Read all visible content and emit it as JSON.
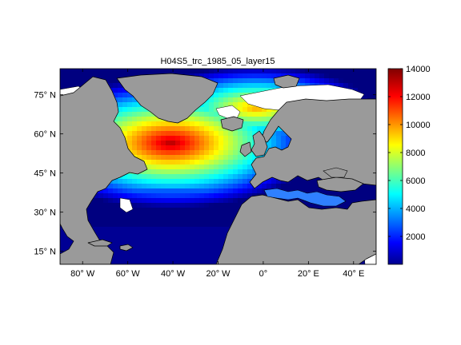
{
  "title": "H04S5_trc_1985_05_layer15",
  "map": {
    "lon_range": [
      -90,
      50
    ],
    "lat_range": [
      10,
      85
    ],
    "x_ticks": [
      {
        "value": -80,
        "label": "80° W"
      },
      {
        "value": -60,
        "label": "60° W"
      },
      {
        "value": -40,
        "label": "40° W"
      },
      {
        "value": -20,
        "label": "20° W"
      },
      {
        "value": 0,
        "label": "0°"
      },
      {
        "value": 20,
        "label": "20° E"
      },
      {
        "value": 40,
        "label": "40° E"
      }
    ],
    "y_ticks": [
      {
        "value": 15,
        "label": "15° N"
      },
      {
        "value": 30,
        "label": "30° N"
      },
      {
        "value": 45,
        "label": "45° N"
      },
      {
        "value": 60,
        "label": "60° N"
      },
      {
        "value": 75,
        "label": "75° N"
      }
    ],
    "land_color": "#9a9a9a",
    "ocean_no_data_color": "#ffffff"
  },
  "colorbar": {
    "min": 0,
    "max": 14000,
    "ticks": [
      {
        "value": 2000,
        "label": "2000"
      },
      {
        "value": 4000,
        "label": "4000"
      },
      {
        "value": 6000,
        "label": "6000"
      },
      {
        "value": 8000,
        "label": "8000"
      },
      {
        "value": 10000,
        "label": "10000"
      },
      {
        "value": 12000,
        "label": "12000"
      },
      {
        "value": 14000,
        "label": "14000"
      }
    ],
    "colormap": "jet"
  }
}
